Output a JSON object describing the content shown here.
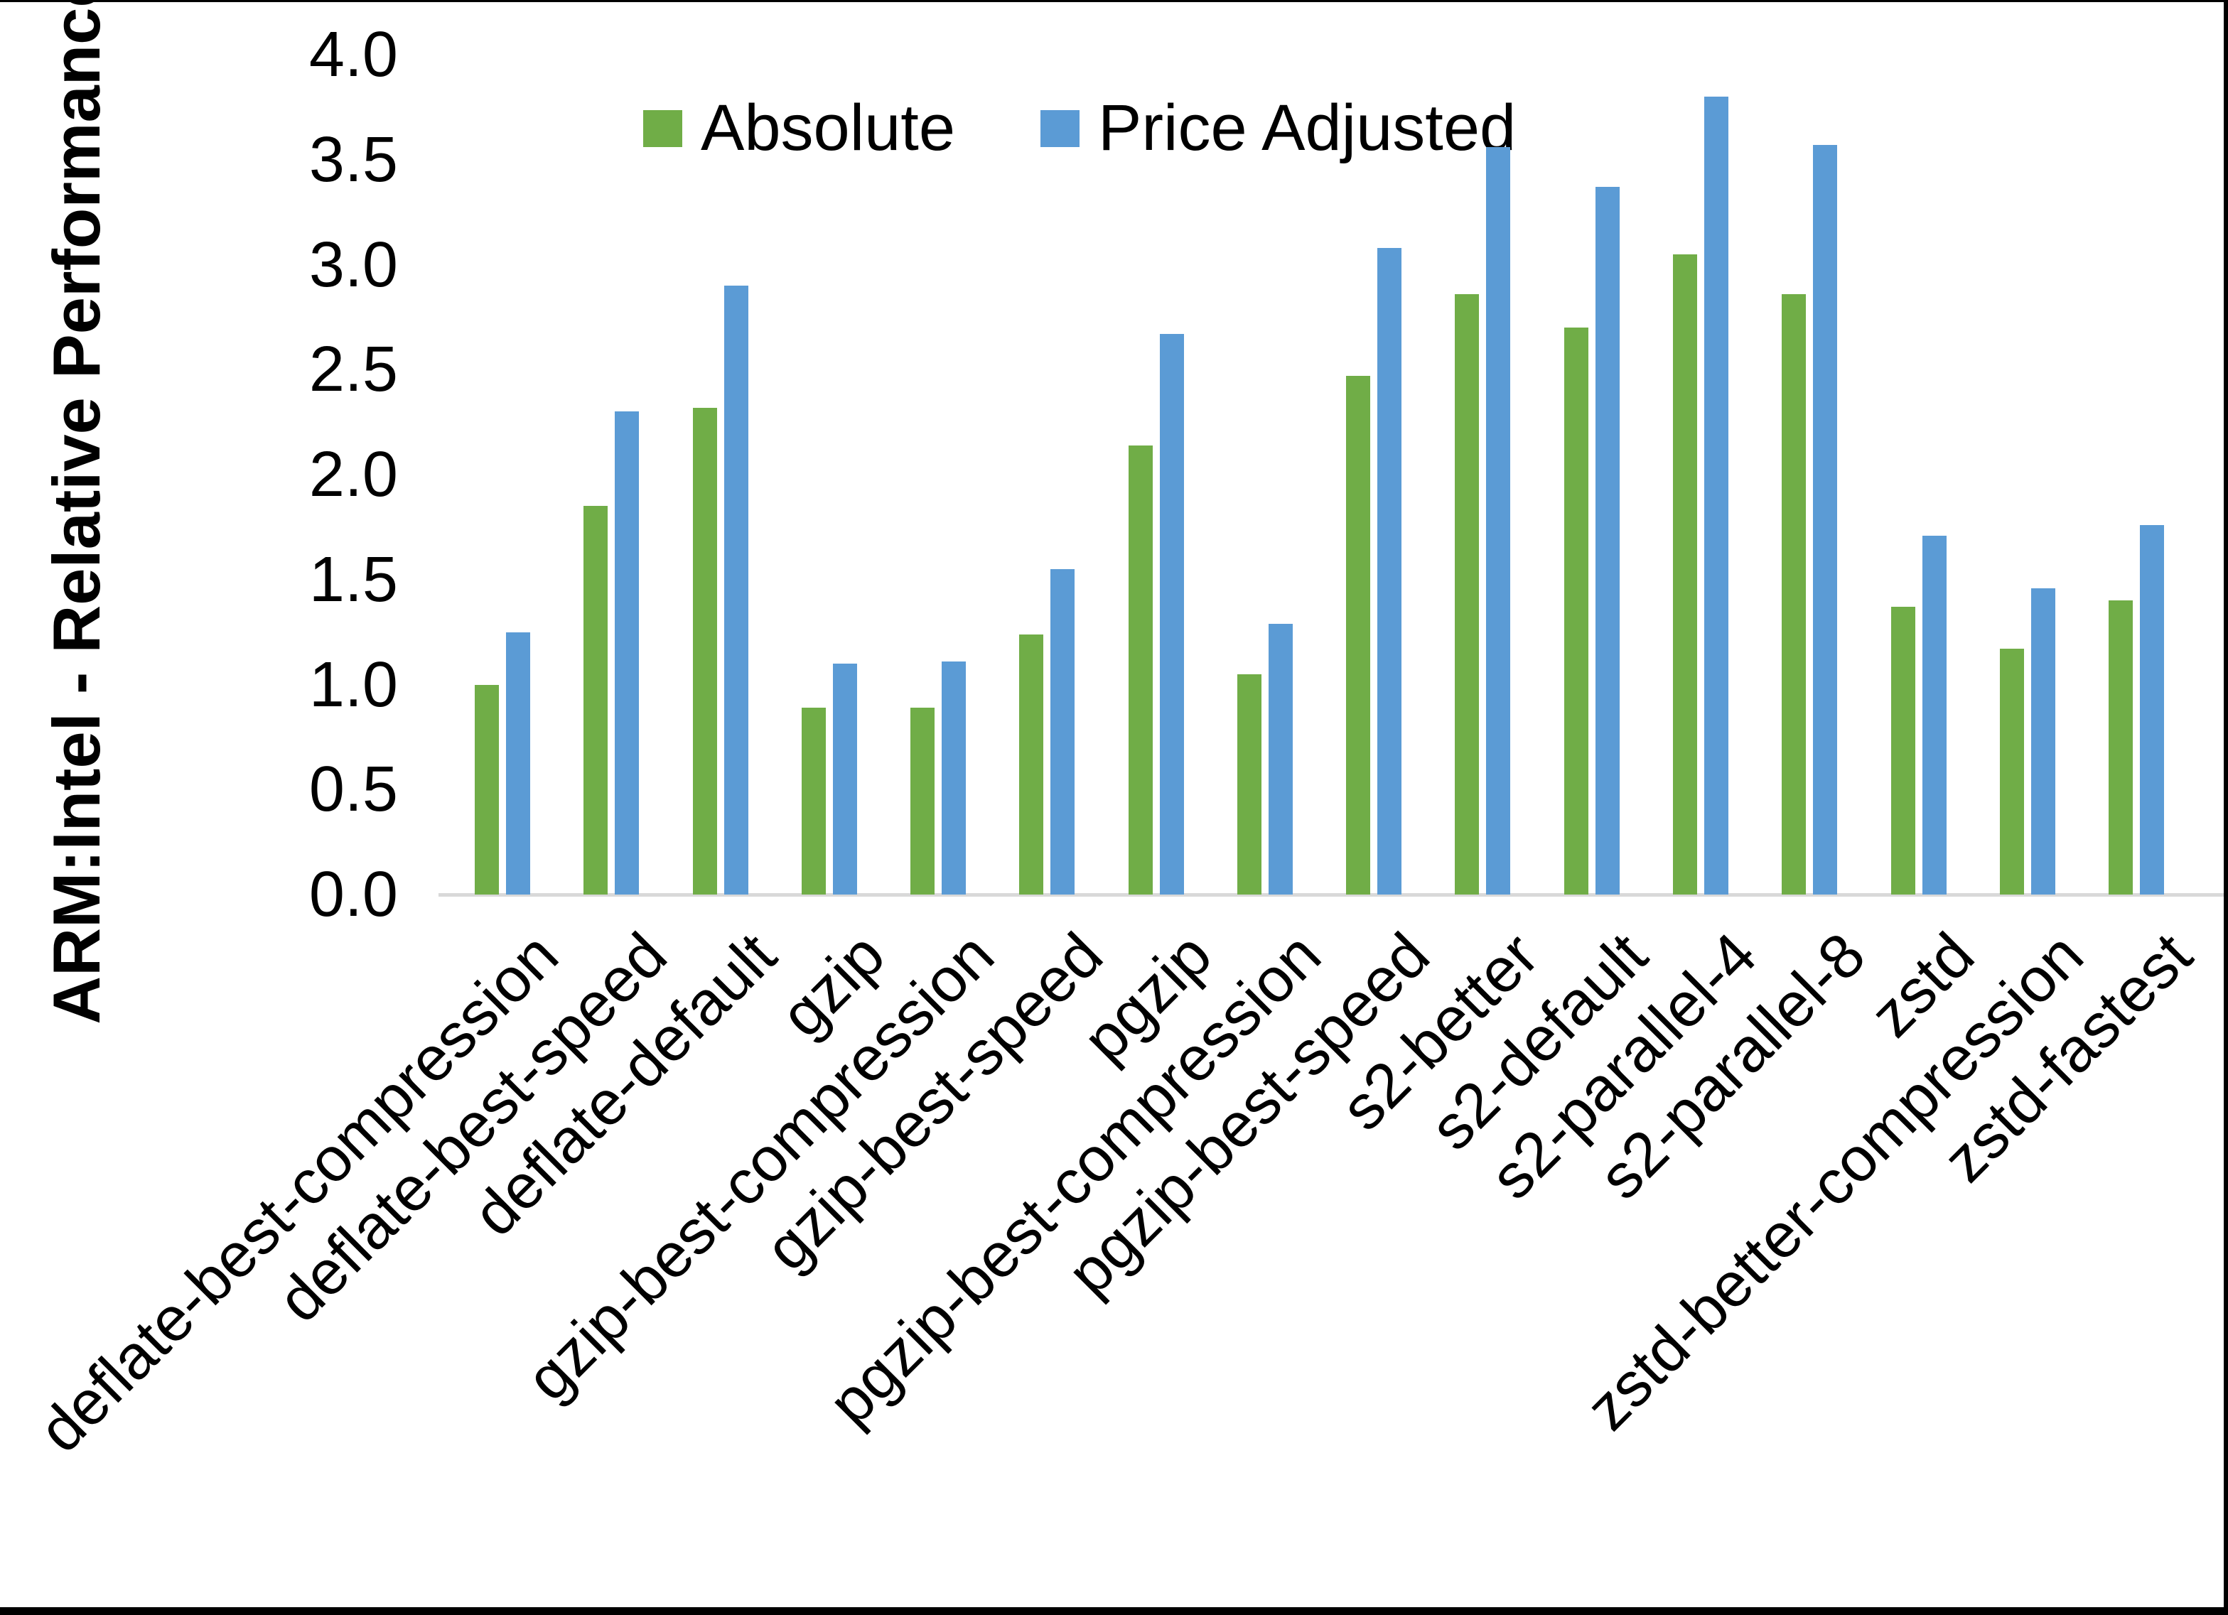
{
  "figure": {
    "background": "#FFFFFF",
    "frame_color": "#000000",
    "axis_line_color": "#D9D9D9"
  },
  "chart_data": {
    "type": "bar",
    "title": "",
    "xlabel": "",
    "ylabel": "ARM:Intel - Relative Performance",
    "ylim": [
      0.0,
      4.0
    ],
    "ytick_step": 0.5,
    "ytick_labels": [
      "0.0",
      "0.5",
      "1.0",
      "1.5",
      "2.0",
      "2.5",
      "3.0",
      "3.5",
      "4.0"
    ],
    "grid": "off",
    "legend_position": "top-center",
    "categories": [
      "deflate-best-compression",
      "deflate-best-speed",
      "deflate-default",
      "gzip",
      "gzip-best-compression",
      "gzip-best-speed",
      "pgzip",
      "pgzip-best-compression",
      "pgzip-best-speed",
      "s2-better",
      "s2-default",
      "s2-parallel-4",
      "s2-parallel-8",
      "zstd",
      "zstd-better-compression",
      "zstd-fastest"
    ],
    "series": [
      {
        "name": "Absolute",
        "color": "#70AD47",
        "values": [
          1.0,
          1.85,
          2.32,
          0.89,
          0.89,
          1.24,
          2.14,
          1.05,
          2.47,
          2.86,
          2.7,
          3.05,
          2.86,
          1.37,
          1.17,
          1.4
        ]
      },
      {
        "name": "Price Adjusted",
        "color": "#5B9BD5",
        "values": [
          1.25,
          2.3,
          2.9,
          1.1,
          1.11,
          1.55,
          2.67,
          1.29,
          3.08,
          3.56,
          3.37,
          3.8,
          3.57,
          1.71,
          1.46,
          1.76
        ]
      }
    ]
  }
}
